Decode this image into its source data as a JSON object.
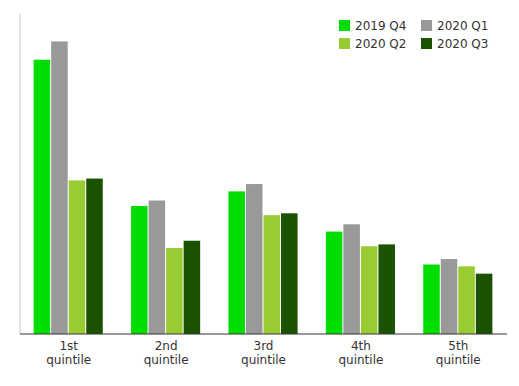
{
  "chart_data": {
    "type": "bar",
    "categories": [
      "1st\nquintile",
      "2nd\nquintile",
      "3rd\nquintile",
      "4th\nquintile",
      "5th\nquintile"
    ],
    "series": [
      {
        "name": "2019 Q4",
        "color": "#00DD00",
        "values": [
          1.5,
          0.7,
          0.78,
          0.56,
          0.38
        ]
      },
      {
        "name": "2020 Q1",
        "color": "#999999",
        "values": [
          1.6,
          0.73,
          0.82,
          0.6,
          0.41
        ]
      },
      {
        "name": "2020 Q2",
        "color": "#99CC33",
        "values": [
          0.84,
          0.47,
          0.65,
          0.48,
          0.37
        ]
      },
      {
        "name": "2020 Q3",
        "color": "#1A5200",
        "values": [
          0.85,
          0.51,
          0.66,
          0.49,
          0.33
        ]
      }
    ],
    "ylim": [
      0,
      1.75
    ],
    "legend": "upper right",
    "tick_labels": "x"
  }
}
